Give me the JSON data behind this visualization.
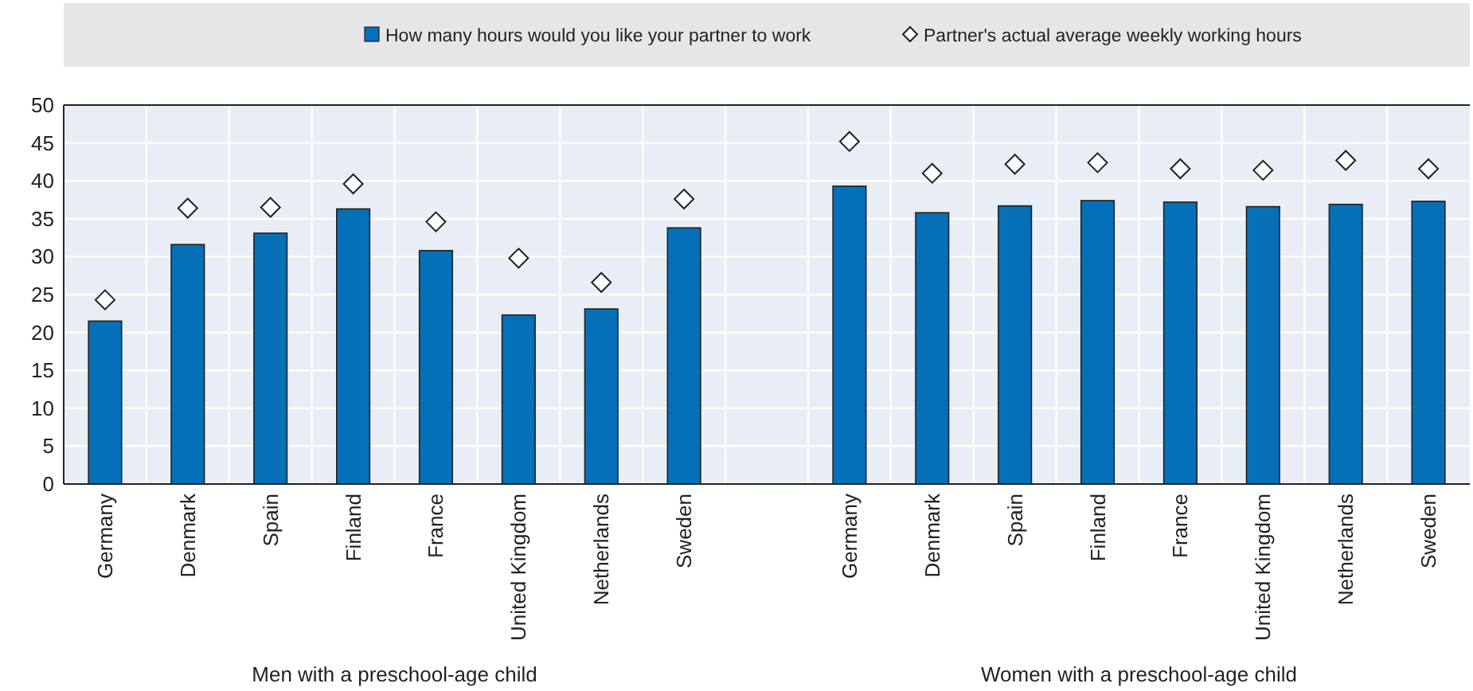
{
  "chart_data": {
    "type": "bar",
    "categories": [
      "Germany",
      "Denmark",
      "Spain",
      "Finland",
      "France",
      "United Kingdom",
      "Netherlands",
      "Sweden",
      null,
      "Germany",
      "Denmark",
      "Spain",
      "Finland",
      "France",
      "United Kingdom",
      "Netherlands",
      "Sweden"
    ],
    "series": [
      {
        "name": "How many hours would you like your partner to work",
        "color": "#0570b8",
        "values": [
          21.5,
          31.6,
          33.1,
          36.3,
          30.8,
          22.3,
          23.1,
          33.8,
          null,
          39.3,
          35.8,
          36.7,
          37.4,
          37.2,
          36.6,
          36.9,
          37.3
        ]
      },
      {
        "name": "Partner's actual average weekly working hours",
        "color": "#ffffff",
        "type": "scatter",
        "marker": "diamond",
        "values": [
          24.3,
          36.4,
          36.5,
          39.6,
          34.6,
          29.8,
          26.6,
          37.6,
          null,
          45.2,
          41.0,
          42.2,
          42.4,
          41.6,
          41.4,
          42.7,
          41.6
        ]
      }
    ],
    "ylim": [
      0,
      50
    ],
    "yticks": [
      0,
      5,
      10,
      15,
      20,
      25,
      30,
      35,
      40,
      45,
      50
    ],
    "grid": true,
    "legend": "top",
    "annotations": [
      "Men with a preschool-age child",
      "Women with a preschool-age child"
    ]
  }
}
